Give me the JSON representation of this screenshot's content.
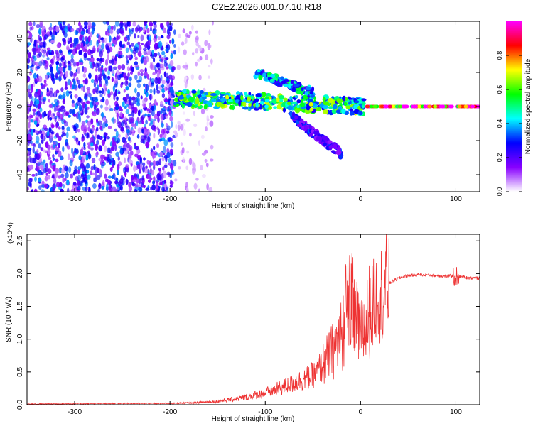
{
  "page_title": "C2E2.2026.001.07.10.R18",
  "chart_data": [
    {
      "type": "heatmap",
      "xlabel": "Height of straight line (km)",
      "ylabel": "Frequency (Hz)",
      "xlim": [
        -350,
        125
      ],
      "ylim": [
        -50,
        50
      ],
      "x_ticks": [
        -300,
        -200,
        -100,
        0,
        100
      ],
      "y_ticks": [
        -40,
        -20,
        0,
        20,
        40
      ],
      "colorbar": {
        "label": "Normalized spectral amplitude",
        "range": [
          0,
          1
        ],
        "ticks": [
          "0.0",
          "0.2",
          "0.4",
          "0.6",
          "0.8"
        ],
        "colors": [
          "#ffffff",
          "#8800ff",
          "#0000ff",
          "#00ffff",
          "#00ff00",
          "#ffff00",
          "#ff0000",
          "#ff00ff"
        ]
      },
      "regions": [
        {
          "name": "noise",
          "x_range": [
            -350,
            -195
          ],
          "y_range": [
            -50,
            50
          ],
          "level": 0.2
        },
        {
          "name": "sparse-noise",
          "x_range": [
            -195,
            -155
          ],
          "y_range": [
            -50,
            50
          ],
          "level": 0.05
        },
        {
          "name": "main-band",
          "x_range": [
            -195,
            5
          ],
          "y_from": [
            5,
            0
          ],
          "level": 0.5
        },
        {
          "name": "upper-branch",
          "x_range": [
            -110,
            -50
          ],
          "y_from": [
            20,
            8
          ],
          "level": 0.4
        },
        {
          "name": "lower-branch",
          "x_range": [
            -75,
            -20
          ],
          "y_from": [
            -5,
            -28
          ],
          "level": 0.25
        },
        {
          "name": "carrier-line",
          "x_range": [
            5,
            125
          ],
          "y_from": [
            0,
            0
          ],
          "level": 0.95
        }
      ]
    },
    {
      "type": "line",
      "xlabel": "Height of straight line (km)",
      "ylabel": "SNR (10 * v/v)",
      "y_multiplier": "(x10^4)",
      "xlim": [
        -350,
        125
      ],
      "ylim": [
        0,
        2.6
      ],
      "x_ticks": [
        -300,
        -200,
        -100,
        0,
        100
      ],
      "y_ticks": [
        "0.0",
        "0.5",
        "1.0",
        "1.5",
        "2.0",
        "2.5"
      ],
      "series": [
        {
          "color": "#ee3333",
          "x": [
            -350,
            -250,
            -200,
            -175,
            -150,
            -125,
            -100,
            -75,
            -50,
            -40,
            -30,
            -20,
            -15,
            -10,
            -5,
            0,
            5,
            10,
            20,
            30,
            40,
            50,
            60,
            70,
            80,
            90,
            100,
            110,
            125
          ],
          "y": [
            0.01,
            0.02,
            0.02,
            0.03,
            0.05,
            0.1,
            0.18,
            0.3,
            0.45,
            0.6,
            0.8,
            1.05,
            1.45,
            1.55,
            1.3,
            1.05,
            1.2,
            1.45,
            1.7,
            1.85,
            1.93,
            1.97,
            1.98,
            1.98,
            1.97,
            1.96,
            1.97,
            1.94,
            1.93
          ]
        }
      ]
    }
  ]
}
